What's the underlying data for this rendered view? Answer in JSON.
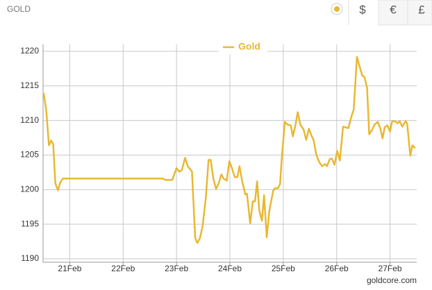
{
  "header": {
    "title": "GOLD",
    "currencies": [
      "$",
      "€",
      "£"
    ]
  },
  "chart_data": {
    "type": "line",
    "legend": "top-center",
    "grid": true,
    "source": "goldcore.com",
    "xlim": [
      20.5,
      27.5
    ],
    "ylim": [
      1189.5,
      1221
    ],
    "xticks": [
      {
        "value": 21,
        "label": "21Feb"
      },
      {
        "value": 22,
        "label": "22Feb"
      },
      {
        "value": 23,
        "label": "23Feb"
      },
      {
        "value": 24,
        "label": "24Feb"
      },
      {
        "value": 25,
        "label": "25Feb"
      },
      {
        "value": 26,
        "label": "26Feb"
      },
      {
        "value": 27,
        "label": "27Feb"
      }
    ],
    "yticks": [
      1190,
      1195,
      1200,
      1205,
      1210,
      1215,
      1220
    ],
    "x": [
      20.51,
      20.56,
      20.61,
      20.65,
      20.69,
      20.73,
      20.78,
      20.82,
      20.87,
      22.75,
      22.79,
      22.92,
      23.0,
      23.05,
      23.1,
      23.16,
      23.21,
      23.29,
      23.35,
      23.39,
      23.44,
      23.49,
      23.55,
      23.6,
      23.64,
      23.69,
      23.74,
      23.79,
      23.84,
      23.88,
      23.94,
      23.99,
      24.04,
      24.09,
      24.14,
      24.18,
      24.23,
      24.29,
      24.32,
      24.38,
      24.43,
      24.47,
      24.51,
      24.55,
      24.6,
      24.64,
      24.69,
      24.74,
      24.81,
      24.84,
      24.9,
      24.94,
      24.97,
      25.03,
      25.08,
      25.14,
      25.18,
      25.23,
      25.27,
      25.32,
      25.38,
      25.43,
      25.48,
      25.53,
      25.57,
      25.62,
      25.68,
      25.73,
      25.78,
      25.82,
      25.87,
      25.91,
      25.96,
      26.01,
      26.06,
      26.12,
      26.17,
      26.22,
      26.27,
      26.32,
      26.38,
      26.43,
      26.48,
      26.52,
      26.57,
      26.61,
      26.66,
      26.71,
      26.77,
      26.82,
      26.86,
      26.9,
      26.95,
      27.0,
      27.04,
      27.09,
      27.14,
      27.18,
      27.23,
      27.29,
      27.32,
      27.38,
      27.42,
      27.47
    ],
    "series": [
      {
        "name": "Gold",
        "color": "#e8b832",
        "values": [
          1214.0,
          1211.5,
          1206.4,
          1207.1,
          1206.6,
          1200.9,
          1199.9,
          1201.0,
          1201.6,
          1201.6,
          1201.4,
          1201.4,
          1203.1,
          1202.6,
          1202.8,
          1204.6,
          1203.4,
          1202.6,
          1193.0,
          1192.3,
          1193.0,
          1194.8,
          1198.9,
          1204.3,
          1204.3,
          1201.6,
          1200.1,
          1200.9,
          1202.2,
          1201.6,
          1201.3,
          1204.1,
          1203.1,
          1201.8,
          1201.8,
          1203.4,
          1201.2,
          1199.3,
          1199.4,
          1195.1,
          1198.3,
          1198.3,
          1201.2,
          1197.0,
          1195.5,
          1199.2,
          1193.1,
          1197.0,
          1199.8,
          1200.2,
          1200.2,
          1200.8,
          1204.4,
          1209.8,
          1209.4,
          1209.3,
          1207.7,
          1209.4,
          1211.2,
          1209.4,
          1208.7,
          1207.2,
          1208.8,
          1207.8,
          1207.1,
          1205.0,
          1203.9,
          1203.4,
          1203.7,
          1203.4,
          1204.4,
          1204.5,
          1203.6,
          1205.6,
          1204.2,
          1209.1,
          1209.0,
          1208.9,
          1210.4,
          1211.6,
          1219.2,
          1217.8,
          1216.5,
          1216.3,
          1214.7,
          1208.0,
          1208.6,
          1209.4,
          1209.8,
          1208.8,
          1207.4,
          1209.0,
          1209.3,
          1208.4,
          1209.9,
          1209.9,
          1209.6,
          1209.9,
          1209.1,
          1209.9,
          1209.6,
          1204.9,
          1206.4,
          1206.0
        ]
      }
    ]
  }
}
